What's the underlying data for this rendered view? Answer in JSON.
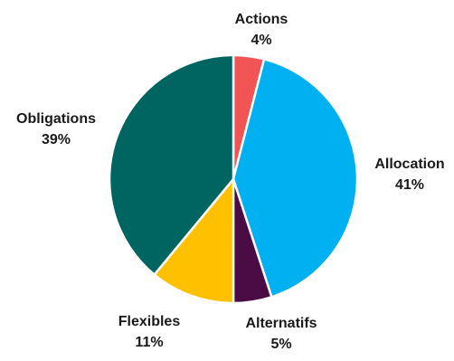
{
  "chart_data": {
    "type": "pie",
    "title": "",
    "slices": [
      {
        "label": "Actions",
        "value": 4,
        "value_label": "4%",
        "color": "#f05454"
      },
      {
        "label": "Allocation",
        "value": 41,
        "value_label": "41%",
        "color": "#00b0f0"
      },
      {
        "label": "Alternatifs",
        "value": 5,
        "value_label": "5%",
        "color": "#4b0b45"
      },
      {
        "label": "Flexibles",
        "value": 11,
        "value_label": "11%",
        "color": "#ffc000"
      },
      {
        "label": "Obligations",
        "value": 39,
        "value_label": "39%",
        "color": "#006461"
      }
    ],
    "start": "12 o'clock",
    "direction": "clockwise",
    "slice_border_color": "#ffffff",
    "legend": "none",
    "data_labels": "outside"
  }
}
